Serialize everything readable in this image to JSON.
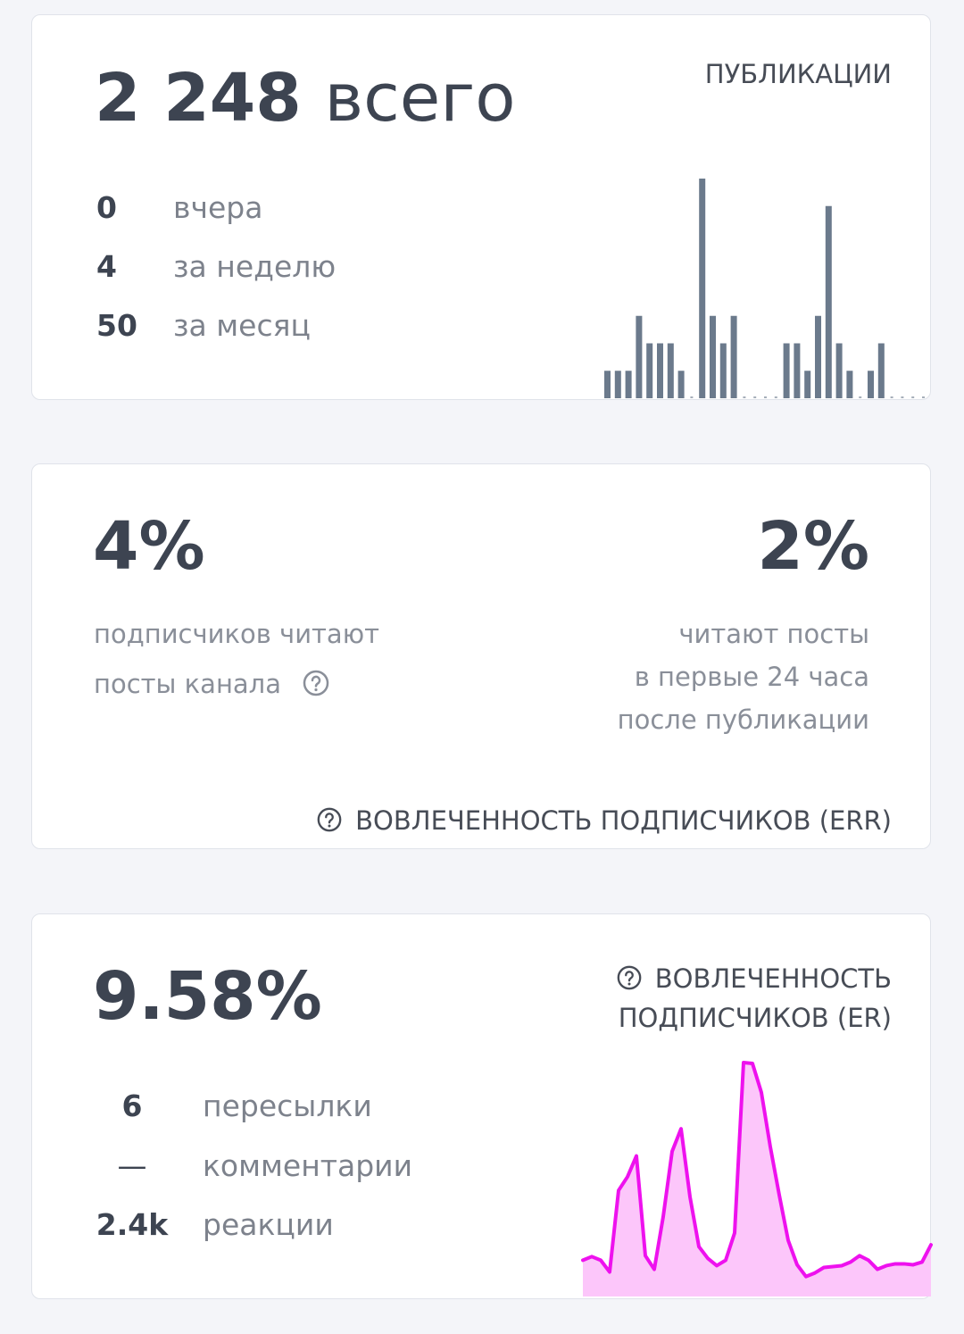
{
  "publications": {
    "total": "2 248",
    "total_unit": "всего",
    "title": "ПУБЛИКАЦИИ",
    "stats": [
      {
        "value": "0",
        "label": "вчера"
      },
      {
        "value": "4",
        "label": "за неделю"
      },
      {
        "value": "50",
        "label": "за месяц"
      }
    ],
    "chart_data": {
      "type": "bar",
      "color": "#6b7a8c",
      "values": [
        1,
        1,
        1,
        3,
        2,
        2,
        2,
        1,
        0,
        8,
        3,
        2,
        3,
        0,
        0,
        0,
        0,
        2,
        2,
        1,
        3,
        7,
        2,
        1,
        0,
        1,
        2,
        0,
        0,
        0,
        0
      ]
    }
  },
  "err": {
    "left_value": "4%",
    "left_caption": [
      "подписчиков читают",
      "посты канала"
    ],
    "right_value": "2%",
    "right_caption": [
      "читают посты",
      "в первые 24 часа",
      "после публикации"
    ],
    "title": "ВОВЛЕЧЕННОСТЬ ПОДПИСЧИКОВ (ERR)"
  },
  "er": {
    "value": "9.58%",
    "title": [
      "ВОВЛЕЧЕННОСТЬ",
      "ПОДПИСЧИКОВ (ER)"
    ],
    "stats": [
      {
        "value": "6",
        "label": "пересылки"
      },
      {
        "value": "—",
        "label": "комментарии"
      },
      {
        "value": "2.4k",
        "label": "реакции"
      }
    ],
    "chart_data": {
      "type": "area",
      "color": "#ee11ee",
      "fill": "#fcc6fa",
      "values": [
        40,
        44,
        40,
        27,
        117,
        132,
        155,
        45,
        30,
        88,
        160,
        185,
        110,
        55,
        42,
        34,
        40,
        70,
        258,
        257,
        225,
        165,
        112,
        62,
        35,
        22,
        26,
        32,
        33,
        34,
        38,
        45,
        40,
        30,
        34,
        36,
        36,
        35,
        38,
        57
      ]
    }
  }
}
